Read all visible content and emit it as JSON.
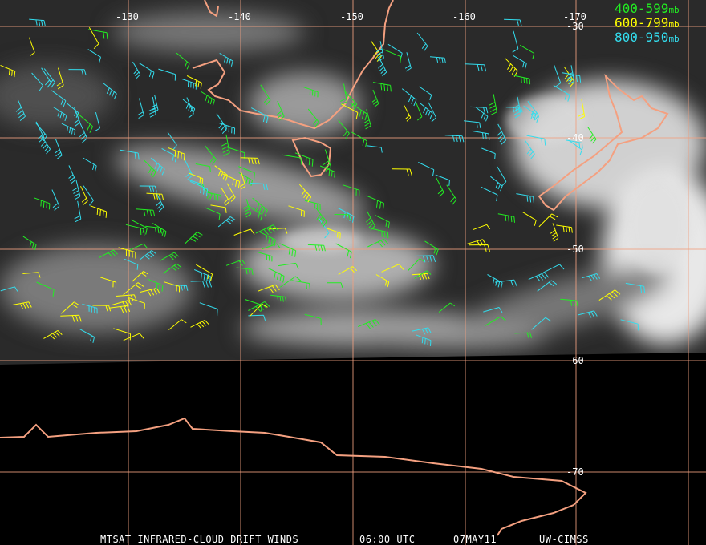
{
  "map": {
    "longitudes": [
      "-130",
      "-140",
      "-150",
      "-160",
      "-170"
    ],
    "latitudes": [
      "-30",
      "-40",
      "-50",
      "-60",
      "-70"
    ],
    "legend": [
      {
        "range": "400-599",
        "unit": "mb"
      },
      {
        "range": "600-799",
        "unit": "mb"
      },
      {
        "range": "800-950",
        "unit": "mb"
      }
    ],
    "footer": {
      "product": "MTSAT INFRARED-CLOUD DRIFT WINDS",
      "time": "06:00 UTC",
      "date": "07MAY11",
      "source": "UW-CIMSS"
    }
  }
}
